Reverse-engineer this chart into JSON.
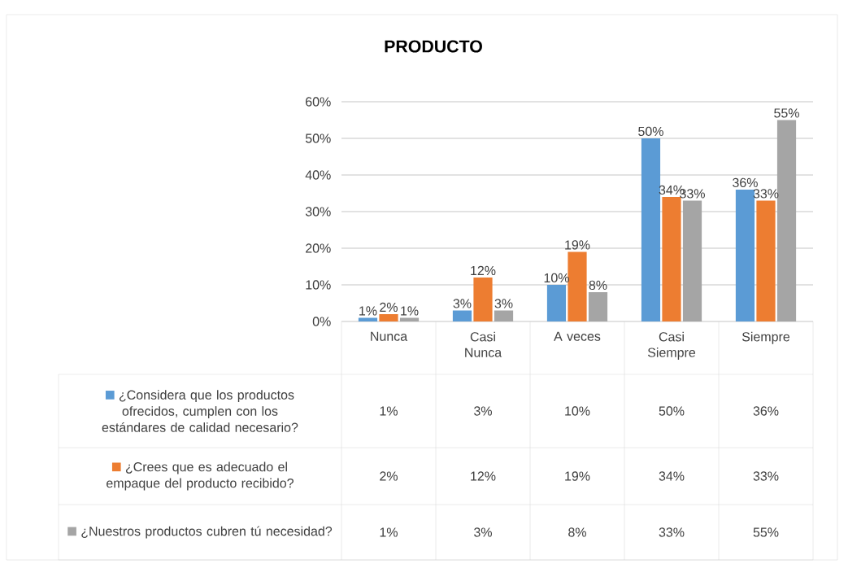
{
  "chart_data": {
    "type": "bar",
    "title": "PRODUCTO",
    "categories": [
      "Nunca",
      "Casi Nunca",
      "A veces",
      "Casi Siempre",
      "Siempre"
    ],
    "series": [
      {
        "name": "¿Considera que los productos ofrecidos, cumplen con los estándares de calidad necesario?",
        "color": "#5b9bd5",
        "values": [
          1,
          3,
          10,
          50,
          36
        ],
        "value_labels": [
          "1%",
          "3%",
          "10%",
          "50%",
          "36%"
        ]
      },
      {
        "name": "¿Crees que es adecuado el empaque del producto recibido?",
        "color": "#ed7d31",
        "values": [
          2,
          12,
          19,
          34,
          33
        ],
        "value_labels": [
          "2%",
          "12%",
          "19%",
          "34%",
          "33%"
        ]
      },
      {
        "name": "¿Nuestros productos cubren tú necesidad?",
        "color": "#a5a5a5",
        "values": [
          1,
          3,
          8,
          33,
          55
        ],
        "value_labels": [
          "1%",
          "3%",
          "8%",
          "33%",
          "55%"
        ]
      }
    ],
    "ylim": [
      0,
      60
    ],
    "yticks": [
      {
        "value": 0,
        "label": "0%"
      },
      {
        "value": 10,
        "label": "10%"
      },
      {
        "value": 20,
        "label": "20%"
      },
      {
        "value": 30,
        "label": "30%"
      },
      {
        "value": 40,
        "label": "40%"
      },
      {
        "value": 50,
        "label": "50%"
      },
      {
        "value": 60,
        "label": "60%"
      }
    ],
    "grid": "y",
    "legend": "bottom"
  }
}
